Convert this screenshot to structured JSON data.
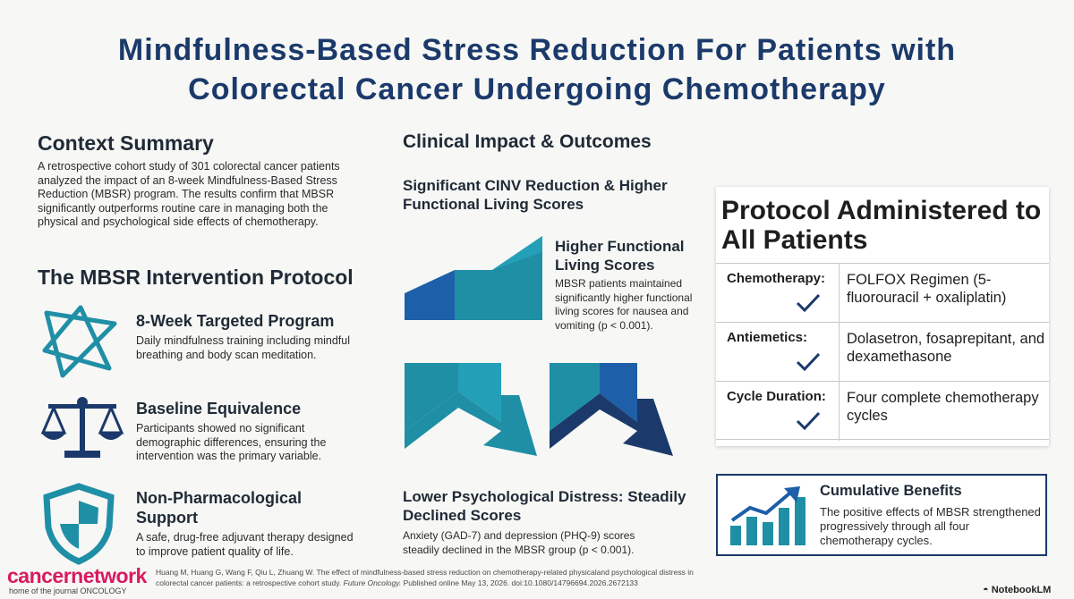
{
  "title": {
    "line1": "Mindfulness-Based Stress Reduction For Patients with",
    "line2": "Colorectal Cancer Undergoing Chemotherapy"
  },
  "context": {
    "heading": "Context Summary",
    "text": "A retrospective cohort study of 301 colorectal cancer patients analyzed the impact of an 8-week Mindfulness-Based Stress Reduction (MBSR) program. The results confirm that MBSR significantly outperforms routine care in managing both the physical and psychological side effects of chemotherapy."
  },
  "intervention": {
    "heading": "The MBSR Intervention Protocol",
    "items": [
      {
        "icon": "star-knot-icon",
        "title": "8-Week Targeted Program",
        "text": "Daily mindfulness training including mindful breathing and body scan meditation."
      },
      {
        "icon": "balance-scale-icon",
        "title": "Baseline Equivalence",
        "text": "Participants showed no significant demographic differences, ensuring the intervention was the primary variable."
      },
      {
        "icon": "shield-icon",
        "title": "Non-Pharmacological Support",
        "text": "A safe, drug-free adjuvant therapy designed to improve patient quality of life."
      }
    ]
  },
  "clinical": {
    "heading": "Clinical Impact & Outcomes",
    "subheading": "Significant CINV Reduction & Higher Functional Living Scores",
    "functional": {
      "title": "Higher Functional Living Scores",
      "text": "MBSR patients maintained significantly higher functional living scores for nausea and vomiting (p < 0.001)."
    },
    "distress": {
      "title": "Lower Psychological Distress: Steadily Declined Scores",
      "text": "Anxiety (GAD-7) and depression (PHQ-9) scores steadily declined in the MBSR group (p < 0.001)."
    }
  },
  "protocol": {
    "title": "Protocol Administered to All Patients",
    "rows": [
      {
        "label": "Chemotherapy:",
        "value": "FOLFOX Regimen (5-fluorouracil + oxaliplatin)"
      },
      {
        "label": "Antiemetics:",
        "value": "Dolasetron, fosaprepitant, and dexamethasone"
      },
      {
        "label": "Cycle Duration:",
        "value": "Four complete chemotherapy cycles"
      }
    ]
  },
  "cumulative": {
    "title": "Cumulative Benefits",
    "text": "The positive effects of MBSR strengthened progressively through all four chemotherapy cycles."
  },
  "footer": {
    "logo_main": "cancernetwork",
    "logo_sub": "home of the journal ONCOLOGY",
    "citation_pre": "Huang M, Huang G, Wang F, Qiu L, Zhuang W. The effect of mindfulness-based stress reduction on chemotherapy-related physicaland psychological distress in colorectal cancer patients: a retrospective cohort study.",
    "citation_journal": "Future Oncology.",
    "citation_post": "Published online May 13, 2026. doi:10.1080/14796694.2026.2672133",
    "brand": "NotebookLM"
  },
  "colors": {
    "navy": "#1b3a6b",
    "teal": "#1f8fa6",
    "blue": "#1d5fa8",
    "pink": "#d81b60"
  }
}
